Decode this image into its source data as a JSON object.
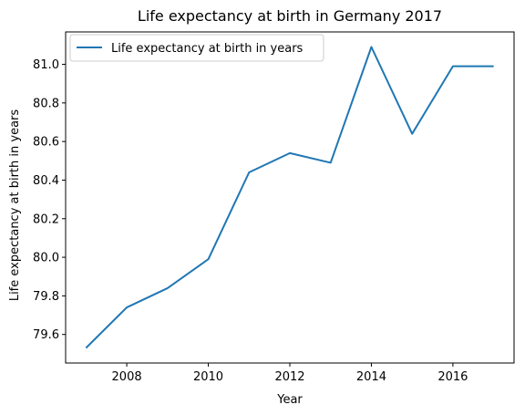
{
  "chart_data": {
    "type": "line",
    "title": "Life expectancy at birth in Germany 2017",
    "xlabel": "Year",
    "ylabel": "Life expectancy at birth in years",
    "x": [
      2007,
      2008,
      2009,
      2010,
      2011,
      2012,
      2013,
      2014,
      2015,
      2016,
      2017
    ],
    "series": [
      {
        "name": "Life expectancy at birth in years",
        "color": "#1f77b4",
        "values": [
          79.53,
          79.74,
          79.84,
          79.99,
          80.44,
          80.54,
          80.49,
          81.09,
          80.64,
          80.99,
          80.99
        ]
      }
    ],
    "xlim": [
      2006.5,
      2017.5
    ],
    "ylim": [
      79.452,
      81.168
    ],
    "xticks": [
      2008,
      2010,
      2012,
      2014,
      2016
    ],
    "yticks": [
      79.6,
      79.8,
      80.0,
      80.2,
      80.4,
      80.6,
      80.8,
      81.0
    ],
    "xtick_labels": [
      "2008",
      "2010",
      "2012",
      "2014",
      "2016"
    ],
    "ytick_labels": [
      "79.6",
      "79.8",
      "80.0",
      "80.2",
      "80.4",
      "80.6",
      "80.8",
      "81.0"
    ],
    "grid": false,
    "legend_position": "upper-left"
  }
}
